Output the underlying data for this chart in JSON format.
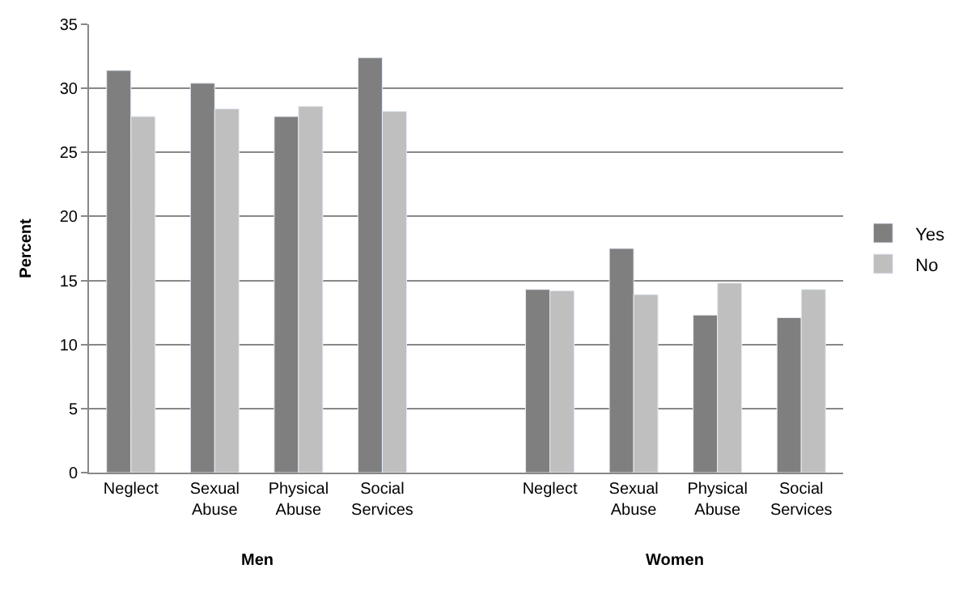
{
  "chart_data": {
    "type": "bar",
    "ylabel": "Percent",
    "categories": [
      "Neglect",
      "Sexual Abuse",
      "Physical Abuse",
      "Social Services",
      null,
      "Neglect",
      "Sexual Abuse",
      "Physical Abuse",
      "Social Services"
    ],
    "series": [
      {
        "name": "Yes",
        "color": "#7f7f7f",
        "values": [
          31.4,
          30.4,
          27.8,
          32.4,
          null,
          14.3,
          17.5,
          12.3,
          12.1
        ]
      },
      {
        "name": "No",
        "color": "#bfbfbf",
        "values": [
          27.8,
          28.4,
          28.6,
          28.2,
          null,
          14.2,
          13.9,
          14.8,
          14.3
        ]
      }
    ],
    "ylim": [
      0,
      35
    ],
    "yticks": [
      0,
      5,
      10,
      15,
      20,
      25,
      30,
      35
    ],
    "grid": "y",
    "legend": "right",
    "annotations": [
      "Men",
      "Women"
    ]
  }
}
